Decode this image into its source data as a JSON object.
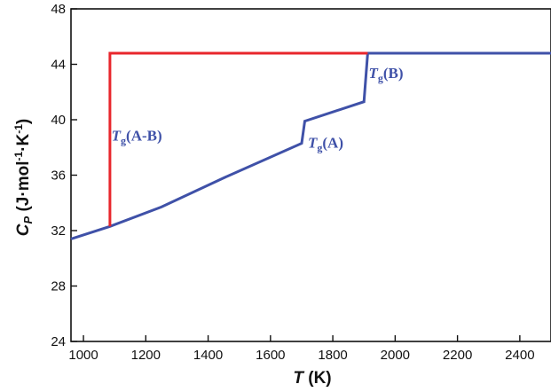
{
  "chart_data": {
    "type": "line",
    "xlim": [
      960,
      2500
    ],
    "ylim": [
      24,
      48
    ],
    "xticks": [
      1000,
      1200,
      1400,
      1600,
      1800,
      2000,
      2200,
      2400
    ],
    "yticks": [
      24,
      28,
      32,
      36,
      40,
      44,
      48
    ],
    "xlabel": {
      "main": "T",
      "unit": " (K)"
    },
    "ylabel": {
      "main": "C",
      "sub": "P",
      "rest": " (J·mol",
      "sup1": "-1",
      "mid": "·K",
      "sup2": "-1",
      "end": ")"
    },
    "series": [
      {
        "color": "#3f51a8",
        "points": [
          [
            960,
            31.4
          ],
          [
            1085,
            32.3
          ],
          [
            1250,
            33.7
          ],
          [
            1450,
            35.8
          ],
          [
            1700,
            38.3
          ],
          [
            1710,
            39.9
          ],
          [
            1900,
            41.3
          ],
          [
            1912,
            44.8
          ],
          [
            2500,
            44.8
          ]
        ]
      },
      {
        "color": "#e8262c",
        "points": [
          [
            1085,
            32.3
          ],
          [
            1085,
            44.8
          ],
          [
            1912,
            44.8
          ]
        ]
      }
    ],
    "annotations": [
      {
        "base": "T",
        "sub": "g",
        "rest": "(A-B)",
        "x": 1090,
        "y": 38.5,
        "color": "#3f51a8"
      },
      {
        "base": "T",
        "sub": "g",
        "rest": "(A)",
        "x": 1720,
        "y": 38.0,
        "color": "#3f51a8"
      },
      {
        "base": "T",
        "sub": "g",
        "rest": "(B)",
        "x": 1915,
        "y": 43.0,
        "color": "#3f51a8"
      }
    ],
    "grid": false
  }
}
